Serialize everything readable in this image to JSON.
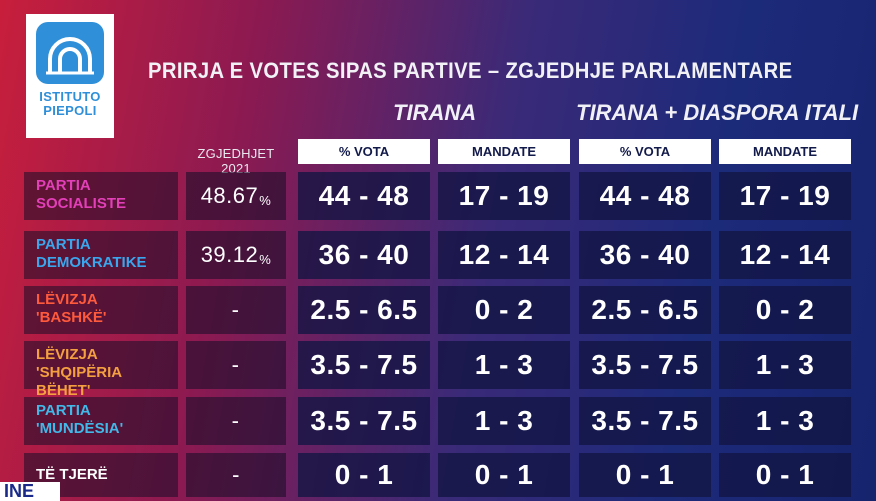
{
  "logo": {
    "line1": "ISTITUTO",
    "line2": "PIEPOLI"
  },
  "title": "PRIRJA E VOTES SIPAS PARTIVE – ZGJEDHJE PARLAMENTARE",
  "sections": {
    "tirana": "TIRANA",
    "diaspora": "TIRANA + DIASPORA ITALI"
  },
  "columns": {
    "elections_2021": "ZGJEDHJET 2021",
    "vota": "% VOTA",
    "mandate": "MANDATE"
  },
  "colors": {
    "socialist": "#e23fb8",
    "democratic": "#3aa6ee",
    "bashke": "#ff5a3c",
    "shqiperia": "#f4a040",
    "mundesia": "#42b8e8",
    "others": "#ffffff"
  },
  "rows": [
    {
      "line1": "PARTIA",
      "line2": "SOCIALISTE",
      "e2021": "48.67",
      "e2021_unit": "%",
      "t_vota": "44 - 48",
      "t_mandate": "17 - 19",
      "d_vota": "44 - 48",
      "d_mandate": "17 - 19"
    },
    {
      "line1": "PARTIA",
      "line2": "DEMOKRATIKE",
      "e2021": "39.12",
      "e2021_unit": "%",
      "t_vota": "36 - 40",
      "t_mandate": "12 - 14",
      "d_vota": "36 - 40",
      "d_mandate": "12 - 14"
    },
    {
      "line1": "LËVIZJA",
      "line2": "'BASHKË'",
      "e2021": "-",
      "e2021_unit": "",
      "t_vota": "2.5 - 6.5",
      "t_mandate": "0 - 2",
      "d_vota": "2.5 - 6.5",
      "d_mandate": "0 - 2"
    },
    {
      "line1": "LËVIZJA",
      "line2": "'SHQIPËRIA BËHET'",
      "e2021": "-",
      "e2021_unit": "",
      "t_vota": "3.5 - 7.5",
      "t_mandate": "1 - 3",
      "d_vota": "3.5 - 7.5",
      "d_mandate": "1 - 3"
    },
    {
      "line1": "PARTIA",
      "line2": "'MUNDËSIA'",
      "e2021": "-",
      "e2021_unit": "",
      "t_vota": "3.5 - 7.5",
      "t_mandate": "1 - 3",
      "d_vota": "3.5 - 7.5",
      "d_mandate": "1 - 3"
    },
    {
      "line1": "TË TJERË",
      "line2": "",
      "e2021": "-",
      "e2021_unit": "",
      "t_vota": "0 - 1",
      "t_mandate": "0 - 1",
      "d_vota": "0 - 1",
      "d_mandate": "0 - 1"
    }
  ],
  "ticker": "INE"
}
